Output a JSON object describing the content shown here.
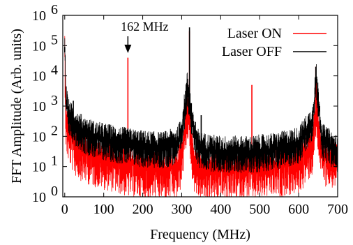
{
  "chart_data": {
    "type": "line",
    "xlabel": "Frequency (MHz)",
    "ylabel": "FFT Amplitude (Arb. units)",
    "xlim": [
      -5,
      700
    ],
    "ylim": [
      1,
      1000000
    ],
    "y_scale": "log",
    "x_ticks": [
      0,
      100,
      200,
      300,
      400,
      500,
      600,
      700
    ],
    "x_tick_labels": [
      "0",
      "100",
      "200",
      "300",
      "400",
      "500",
      "600",
      "700"
    ],
    "y_ticks": [
      1,
      10,
      100,
      1000,
      10000,
      100000,
      1000000
    ],
    "y_tick_bases": [
      "10",
      "10",
      "10",
      "10",
      "10",
      "10",
      "10"
    ],
    "y_tick_exponents": [
      "0",
      "1",
      "2",
      "3",
      "4",
      "5",
      "6"
    ],
    "legend_position": "top-right",
    "annotation": {
      "text": "162 MHz",
      "x": 162
    },
    "series": [
      {
        "name": "Laser ON",
        "color": "#ff0000",
        "background": [
          [
            0,
            90000
          ],
          [
            3,
            300
          ],
          [
            10,
            160
          ],
          [
            25,
            60
          ],
          [
            50,
            35
          ],
          [
            80,
            25
          ],
          [
            120,
            18
          ],
          [
            160,
            12
          ],
          [
            200,
            10
          ],
          [
            250,
            9
          ],
          [
            290,
            10
          ],
          [
            300,
            30
          ],
          [
            315,
            1000
          ],
          [
            330,
            20
          ],
          [
            345,
            9
          ],
          [
            400,
            9
          ],
          [
            480,
            10
          ],
          [
            550,
            12
          ],
          [
            600,
            15
          ],
          [
            635,
            60
          ],
          [
            645,
            1000
          ],
          [
            660,
            30
          ],
          [
            700,
            20
          ]
        ],
        "peaks": [
          [
            0,
            90000
          ],
          [
            162,
            40000
          ],
          [
            320,
            300000
          ],
          [
            480,
            5000
          ],
          [
            644,
            20000
          ]
        ]
      },
      {
        "name": "Laser OFF",
        "color": "#000000",
        "background": [
          [
            0,
            90000
          ],
          [
            3,
            2000
          ],
          [
            10,
            500
          ],
          [
            25,
            250
          ],
          [
            50,
            130
          ],
          [
            80,
            90
          ],
          [
            120,
            70
          ],
          [
            160,
            55
          ],
          [
            200,
            45
          ],
          [
            250,
            40
          ],
          [
            290,
            60
          ],
          [
            300,
            150
          ],
          [
            315,
            5000
          ],
          [
            330,
            150
          ],
          [
            345,
            40
          ],
          [
            400,
            30
          ],
          [
            480,
            30
          ],
          [
            550,
            40
          ],
          [
            600,
            60
          ],
          [
            635,
            300
          ],
          [
            645,
            8000
          ],
          [
            660,
            80
          ],
          [
            700,
            30
          ]
        ],
        "peaks": [
          [
            0,
            60000
          ],
          [
            22,
            1500
          ],
          [
            320,
            400000
          ],
          [
            335,
            300
          ],
          [
            350,
            500
          ],
          [
            644,
            20000
          ]
        ]
      }
    ]
  }
}
